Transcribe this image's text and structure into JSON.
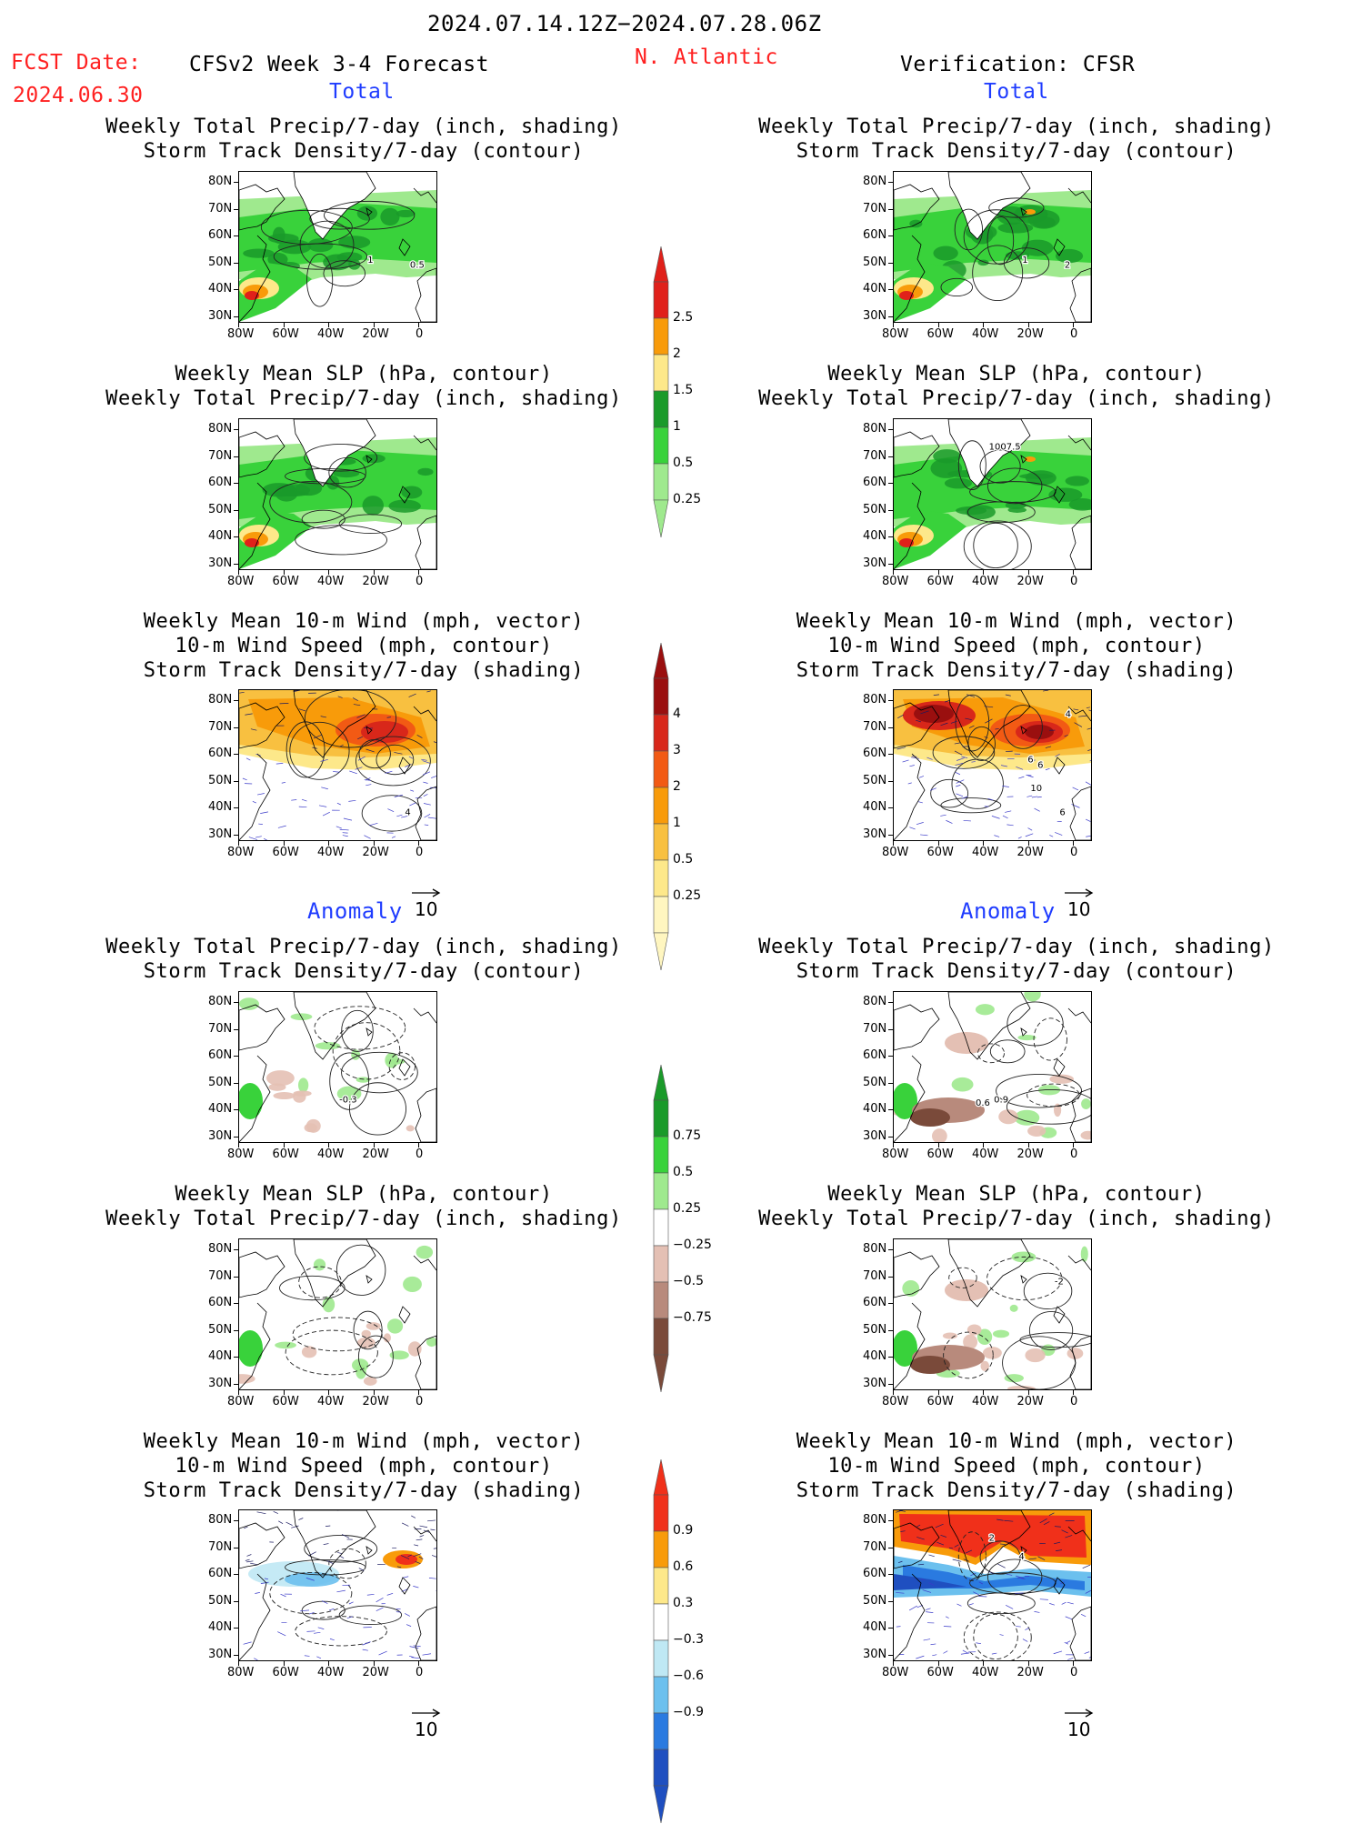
{
  "header": {
    "period": "2024.07.14.12Z−2024.07.28.06Z",
    "fcst_label": "FCST Date:",
    "fcst_date": "2024.06.30",
    "model": "CFSv2 Week 3-4 Forecast",
    "region": "N. Atlantic",
    "verification": "Verification: CFSR"
  },
  "sections": {
    "total": "Total",
    "anomaly": "Anomaly"
  },
  "titles": {
    "precip_storm": [
      "Weekly Total Precip/7-day (inch, shading)",
      "Storm Track Density/7-day (contour)"
    ],
    "slp_precip": [
      "Weekly Mean SLP (hPa, contour)",
      "Weekly Total Precip/7-day (inch, shading)"
    ],
    "wind": [
      "Weekly Mean 10-m Wind (mph, vector)",
      "10-m Wind Speed (mph, contour)",
      "Storm Track Density/7-day (shading)"
    ]
  },
  "axes": {
    "lat": [
      "80N",
      "70N",
      "60N",
      "50N",
      "40N",
      "30N"
    ],
    "lon": [
      "80W",
      "60W",
      "40W",
      "20W",
      "0"
    ]
  },
  "vector_ref": "10",
  "contour_labels": {
    "fc_total_precip": [
      "0.5",
      "1"
    ],
    "ob_total_precip": [
      "2",
      "1"
    ],
    "ob_total_slp": [
      "1007.5"
    ],
    "fc_total_wind": [
      "4"
    ],
    "ob_total_wind": [
      "6",
      "4",
      "10",
      "6",
      "6"
    ],
    "fc_anom_precip": [
      "-0.3"
    ],
    "ob_anom_precip": [
      "0.9",
      "0.6"
    ],
    "ob_anom_slp": [
      "-2"
    ],
    "ob_anom_wind": [
      "2",
      "4"
    ]
  },
  "colorbars": {
    "precip_total": {
      "labels": [
        "2.5",
        "2",
        "1.5",
        "1",
        "0.5",
        "0.25"
      ],
      "colors": [
        "#e0201a",
        "#f89b0a",
        "#fde88a",
        "#1a9a2a",
        "#39d23b",
        "#9fe98e"
      ]
    },
    "storm_total": {
      "labels": [
        "4",
        "3",
        "2",
        "1",
        "0.5",
        "0.25"
      ],
      "colors": [
        "#9a0f0f",
        "#d8271a",
        "#f25a14",
        "#f89b0a",
        "#f8c040",
        "#fde88a",
        "#fff6c0"
      ]
    },
    "precip_anom": {
      "labels": [
        "0.75",
        "0.5",
        "0.25",
        "−0.25",
        "−0.5",
        "−0.75"
      ],
      "colors": [
        "#1a9a2a",
        "#39d23b",
        "#9fe98e",
        "#ffffff",
        "#e4c0b4",
        "#b88a7c",
        "#7a4a3a"
      ]
    },
    "storm_anom": {
      "labels": [
        "0.9",
        "0.6",
        "0.3",
        "−0.3",
        "−0.6",
        "−0.9"
      ],
      "colors": [
        "#f0301a",
        "#f89b0a",
        "#fde88a",
        "#ffffff",
        "#bfe8f4",
        "#6cc0ee",
        "#2a7ae0",
        "#1f4fc0"
      ]
    }
  }
}
